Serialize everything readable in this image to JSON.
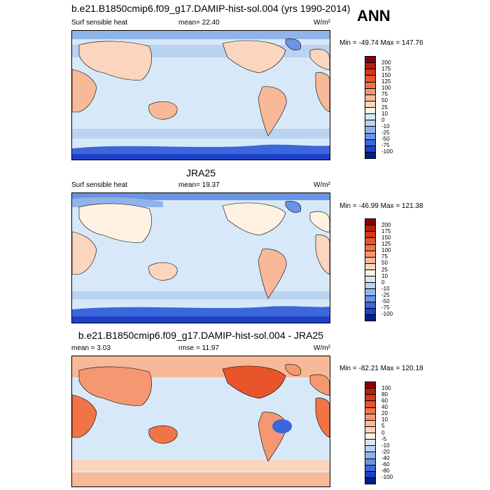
{
  "season": "ANN",
  "panels": [
    {
      "id": "model",
      "title": "b.e21.B1850cmip6.f09_g17.DAMIP-hist-sol.004 (yrs 1990-2014)",
      "left_label": "Surf sensible heat",
      "center_label": "mean=  22.40",
      "units": "W/m²",
      "minmax": "Min = -49.74 Max = 147.76",
      "levels": [
        "200",
        "175",
        "150",
        "125",
        "100",
        "75",
        "50",
        "25",
        "10",
        "0",
        "-10",
        "-25",
        "-50",
        "-75",
        "-100"
      ],
      "colors": [
        "#8b0000",
        "#b5200e",
        "#d5381a",
        "#e8552b",
        "#f07447",
        "#f59770",
        "#f8b999",
        "#fbd5bd",
        "#fff2e3",
        "#d7e9f8",
        "#b9d3f0",
        "#90b4ea",
        "#6a94e4",
        "#3b66dc",
        "#1e40c7",
        "#00208c"
      ]
    },
    {
      "id": "obs",
      "title": "JRA25",
      "left_label": "Surf sensible heat",
      "center_label": "mean=  19.37",
      "units": "W/m²",
      "minmax": "Min = -46.99 Max = 121.38",
      "levels": [
        "200",
        "175",
        "150",
        "125",
        "100",
        "75",
        "50",
        "25",
        "10",
        "0",
        "-10",
        "-25",
        "-50",
        "-75",
        "-100"
      ],
      "colors": [
        "#8b0000",
        "#b5200e",
        "#d5381a",
        "#e8552b",
        "#f07447",
        "#f59770",
        "#f8b999",
        "#fbd5bd",
        "#fff2e3",
        "#d7e9f8",
        "#b9d3f0",
        "#90b4ea",
        "#6a94e4",
        "#3b66dc",
        "#1e40c7",
        "#00208c"
      ]
    },
    {
      "id": "diff",
      "title": "b.e21.B1850cmip6.f09_g17.DAMIP-hist-sol.004 - JRA25",
      "left_label": "mean =  3.03",
      "center_label": "rmse =  11.97",
      "units": "W/m²",
      "minmax": "Min = -82.21 Max = 120.18",
      "levels": [
        "100",
        "80",
        "60",
        "40",
        "20",
        "10",
        "5",
        "0",
        "-5",
        "-10",
        "-20",
        "-40",
        "-60",
        "-80",
        "-100"
      ],
      "colors": [
        "#8b0000",
        "#b5200e",
        "#d5381a",
        "#e8552b",
        "#f07447",
        "#f59770",
        "#f8b999",
        "#fbd5bd",
        "#fff2e3",
        "#d7e9f8",
        "#b9d3f0",
        "#90b4ea",
        "#6a94e4",
        "#3b66dc",
        "#1e40c7",
        "#00208c"
      ]
    }
  ]
}
